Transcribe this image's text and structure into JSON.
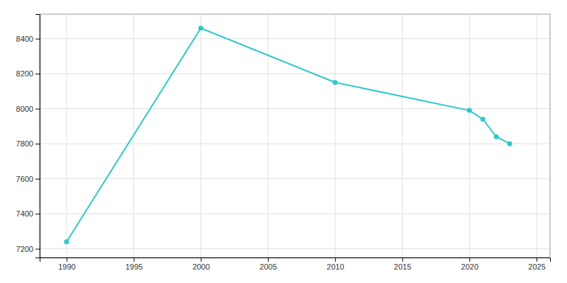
{
  "chart_data": {
    "type": "line",
    "x": [
      1990,
      2000,
      2010,
      2020,
      2021,
      2022,
      2023
    ],
    "values": [
      7240,
      8460,
      8150,
      7990,
      7940,
      7840,
      7800
    ],
    "color": "#2EC8C8",
    "marker": "circle",
    "xlim": [
      1988,
      2026
    ],
    "ylim": [
      7150,
      8540
    ],
    "xticks": [
      1990,
      1995,
      2000,
      2005,
      2010,
      2015,
      2020,
      2025
    ],
    "yticks": [
      7200,
      7400,
      7600,
      7800,
      8000,
      8200,
      8400
    ],
    "grid": true
  }
}
